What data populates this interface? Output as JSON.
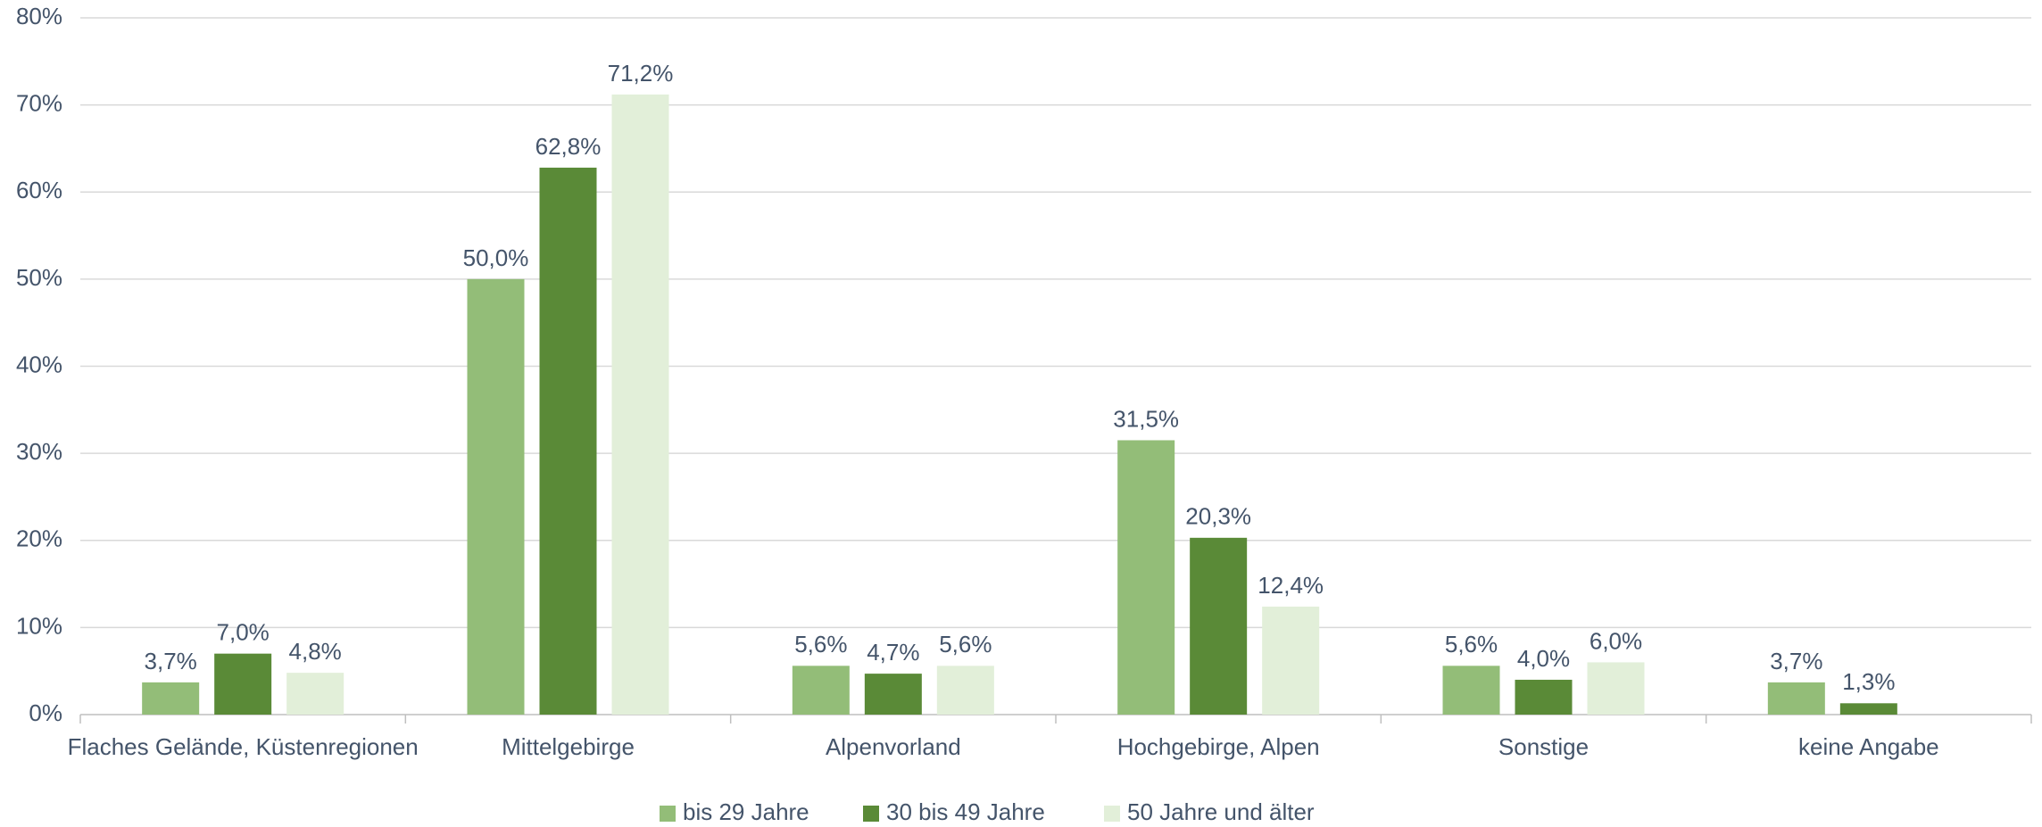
{
  "chart_data": {
    "type": "bar",
    "categories": [
      "Flaches Gelände, Küstenregionen",
      "Mittelgebirge",
      "Alpenvorland",
      "Hochgebirge, Alpen",
      "Sonstige",
      "keine Angabe"
    ],
    "series": [
      {
        "name": "bis 29 Jahre",
        "color": "#93bd78",
        "values": [
          3.7,
          50.0,
          5.6,
          31.5,
          5.6,
          3.7
        ],
        "value_labels": [
          "3,7%",
          "50,0%",
          "5,6%",
          "31,5%",
          "5,6%",
          "3,7%"
        ]
      },
      {
        "name": "30 bis 49 Jahre",
        "color": "#5a8a37",
        "values": [
          7.0,
          62.8,
          4.7,
          20.3,
          4.0,
          1.3
        ],
        "value_labels": [
          "7,0%",
          "62,8%",
          "4,7%",
          "20,3%",
          "4,0%",
          "1,3%"
        ]
      },
      {
        "name": "50 Jahre und älter",
        "color": "#e2efd9",
        "values": [
          4.8,
          71.2,
          5.6,
          12.4,
          6.0,
          null
        ],
        "value_labels": [
          "4,8%",
          "71,2%",
          "5,6%",
          "12,4%",
          "6,0%",
          null
        ]
      }
    ],
    "ylim": [
      0,
      80
    ],
    "yticks": [
      {
        "value": 0,
        "label": "0%"
      },
      {
        "value": 10,
        "label": "10%"
      },
      {
        "value": 20,
        "label": "20%"
      },
      {
        "value": 30,
        "label": "30%"
      },
      {
        "value": 40,
        "label": "40%"
      },
      {
        "value": 50,
        "label": "50%"
      },
      {
        "value": 60,
        "label": "60%"
      },
      {
        "value": 70,
        "label": "70%"
      },
      {
        "value": 80,
        "label": "80%"
      }
    ],
    "grid": true,
    "legend": "bottom"
  }
}
